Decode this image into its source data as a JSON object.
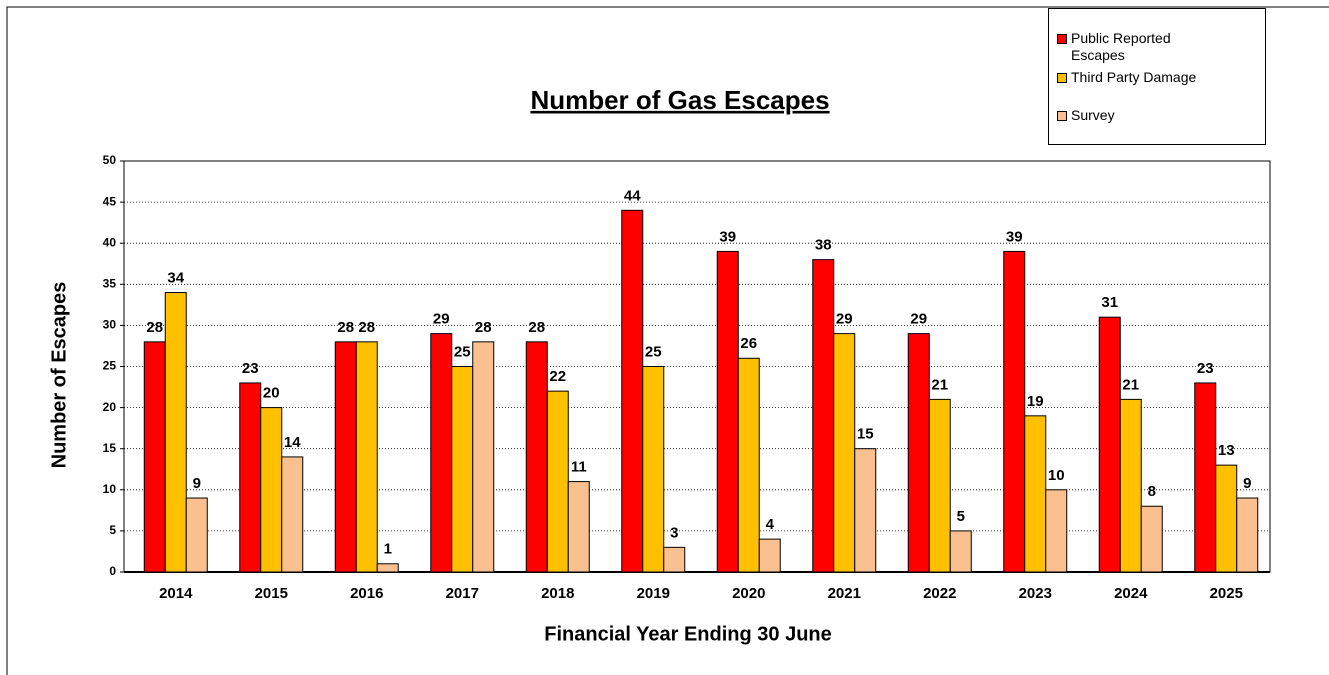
{
  "chart_data": {
    "type": "bar",
    "title": "Number of Gas Escapes",
    "x_label": "Financial Year Ending 30 June",
    "y_label": "Number of Escapes",
    "categories": [
      "2014",
      "2015",
      "2016",
      "2017",
      "2018",
      "2019",
      "2020",
      "2021",
      "2022",
      "2023",
      "2024",
      "2025"
    ],
    "series": [
      {
        "name": "Public Reported Escapes",
        "color": "#ff0000",
        "values": [
          28,
          23,
          28,
          29,
          28,
          44,
          39,
          38,
          29,
          39,
          31,
          23
        ]
      },
      {
        "name": "Third Party Damage",
        "color": "#ffc000",
        "values": [
          34,
          20,
          28,
          25,
          22,
          25,
          26,
          29,
          21,
          19,
          21,
          13
        ]
      },
      {
        "name": "Survey",
        "color": "#fac090",
        "values": [
          9,
          14,
          1,
          28,
          11,
          3,
          4,
          15,
          5,
          10,
          8,
          9
        ]
      }
    ],
    "ylim": [
      0,
      50
    ],
    "yticks": [
      0,
      5,
      10,
      15,
      20,
      25,
      30,
      35,
      40,
      45,
      50
    ],
    "grid": true,
    "legend": "top-right"
  }
}
